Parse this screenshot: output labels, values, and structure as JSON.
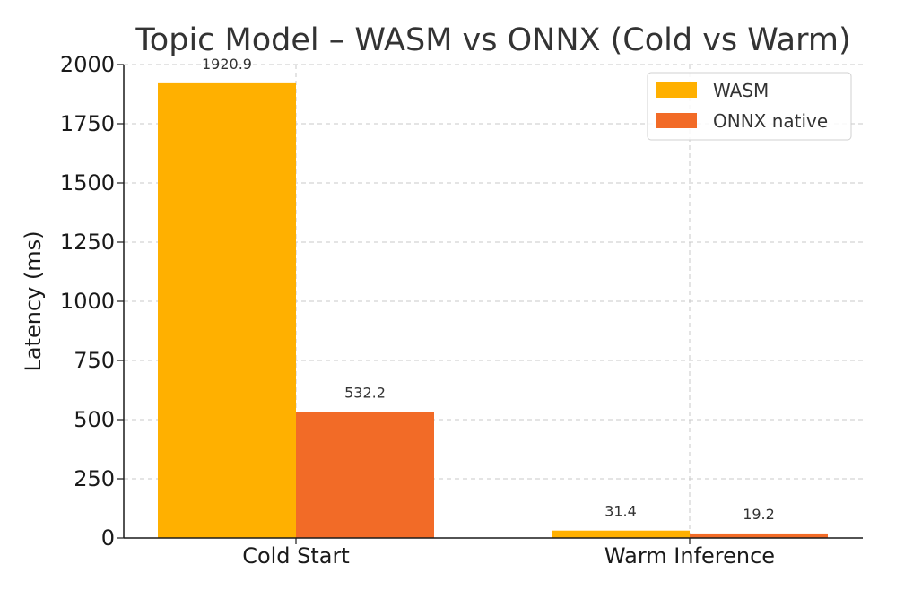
{
  "chart_data": {
    "type": "bar",
    "title": "Topic Model – WASM vs ONNX (Cold vs Warm)",
    "xlabel": "",
    "ylabel": "Latency (ms)",
    "categories": [
      "Cold Start",
      "Warm Inference"
    ],
    "series": [
      {
        "name": "WASM",
        "values": [
          1920.9,
          31.4
        ],
        "labels": [
          "1920.9",
          "31.4"
        ],
        "color": "#FFB000"
      },
      {
        "name": "ONNX native",
        "values": [
          532.2,
          19.2
        ],
        "labels": [
          "532.2",
          "19.2"
        ],
        "color": "#F26B27"
      }
    ],
    "ylim": [
      0,
      2000
    ],
    "yticks": [
      0,
      250,
      500,
      750,
      1000,
      1250,
      1500,
      1750,
      2000
    ],
    "grid": true,
    "legend_position": "top-right"
  }
}
